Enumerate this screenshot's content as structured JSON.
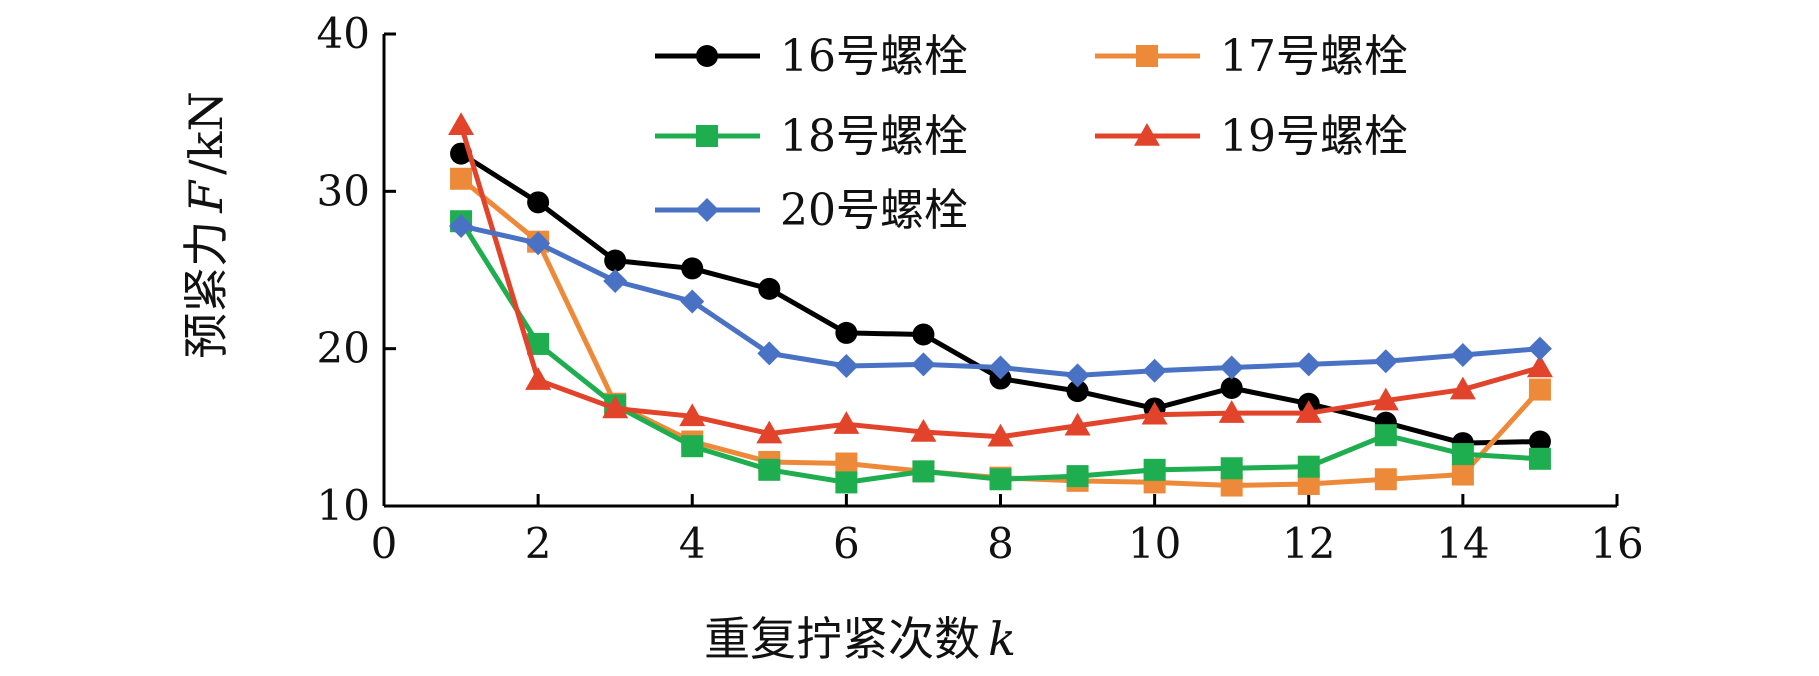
{
  "chart_data": {
    "type": "line",
    "title": "",
    "xlabel": "重复拧紧次数",
    "xlabel_var": "k",
    "ylabel": "预紧力",
    "ylabel_var": "F",
    "ylabel_unit": "/kN",
    "xlim": [
      0,
      16
    ],
    "ylim": [
      10,
      40
    ],
    "xticks": [
      0,
      2,
      4,
      6,
      8,
      10,
      12,
      14,
      16
    ],
    "yticks": [
      10,
      20,
      30,
      40
    ],
    "grid": false,
    "legend_position": "top-right",
    "x": [
      1,
      2,
      3,
      4,
      5,
      6,
      7,
      8,
      9,
      10,
      11,
      12,
      13,
      14,
      15
    ],
    "series": [
      {
        "name": "16号螺栓",
        "color": "#000000",
        "marker": "circle",
        "values": [
          32.4,
          29.3,
          25.6,
          25.1,
          23.8,
          21.0,
          20.9,
          18.1,
          17.3,
          16.2,
          17.5,
          16.5,
          15.3,
          14.0,
          14.1
        ]
      },
      {
        "name": "17号螺栓",
        "color": "#ED8A3A",
        "marker": "square",
        "values": [
          30.8,
          26.8,
          16.5,
          14.1,
          12.8,
          12.7,
          12.2,
          11.8,
          11.6,
          11.5,
          11.3,
          11.4,
          11.7,
          12.0,
          17.4
        ]
      },
      {
        "name": "18号螺栓",
        "color": "#1FAE4F",
        "marker": "square",
        "values": [
          28.1,
          20.3,
          16.4,
          13.8,
          12.3,
          11.5,
          12.2,
          11.7,
          11.9,
          12.3,
          12.4,
          12.5,
          14.5,
          13.3,
          13.0
        ]
      },
      {
        "name": "19号螺栓",
        "color": "#E2442B",
        "marker": "triangle",
        "values": [
          34.2,
          18.0,
          16.2,
          15.7,
          14.6,
          15.2,
          14.7,
          14.4,
          15.1,
          15.8,
          15.9,
          15.9,
          16.7,
          17.4,
          18.8
        ]
      },
      {
        "name": "20号螺栓",
        "color": "#4A72C4",
        "marker": "diamond",
        "values": [
          27.8,
          26.7,
          24.3,
          23.0,
          19.7,
          18.9,
          19.0,
          18.8,
          18.3,
          18.6,
          18.8,
          19.0,
          19.2,
          19.6,
          20.0
        ]
      }
    ]
  }
}
